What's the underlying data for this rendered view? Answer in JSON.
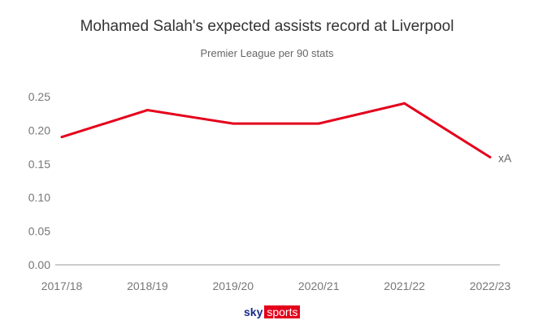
{
  "chart_data": {
    "type": "line",
    "title": "Mohamed Salah's expected assists record at Liverpool",
    "subtitle": "Premier League per 90 stats",
    "categories": [
      "2017/18",
      "2018/19",
      "2019/20",
      "2020/21",
      "2021/22",
      "2022/23"
    ],
    "series": [
      {
        "name": "xA",
        "values": [
          0.19,
          0.23,
          0.21,
          0.21,
          0.24,
          0.16
        ],
        "color": "#e4001b"
      }
    ],
    "yticks": [
      "0.00",
      "0.05",
      "0.10",
      "0.15",
      "0.20",
      "0.25"
    ],
    "ylim": [
      0,
      0.25
    ],
    "grid": false,
    "xlabel": "",
    "ylabel": ""
  },
  "logo": {
    "sky": "sky",
    "sports": "sports"
  }
}
